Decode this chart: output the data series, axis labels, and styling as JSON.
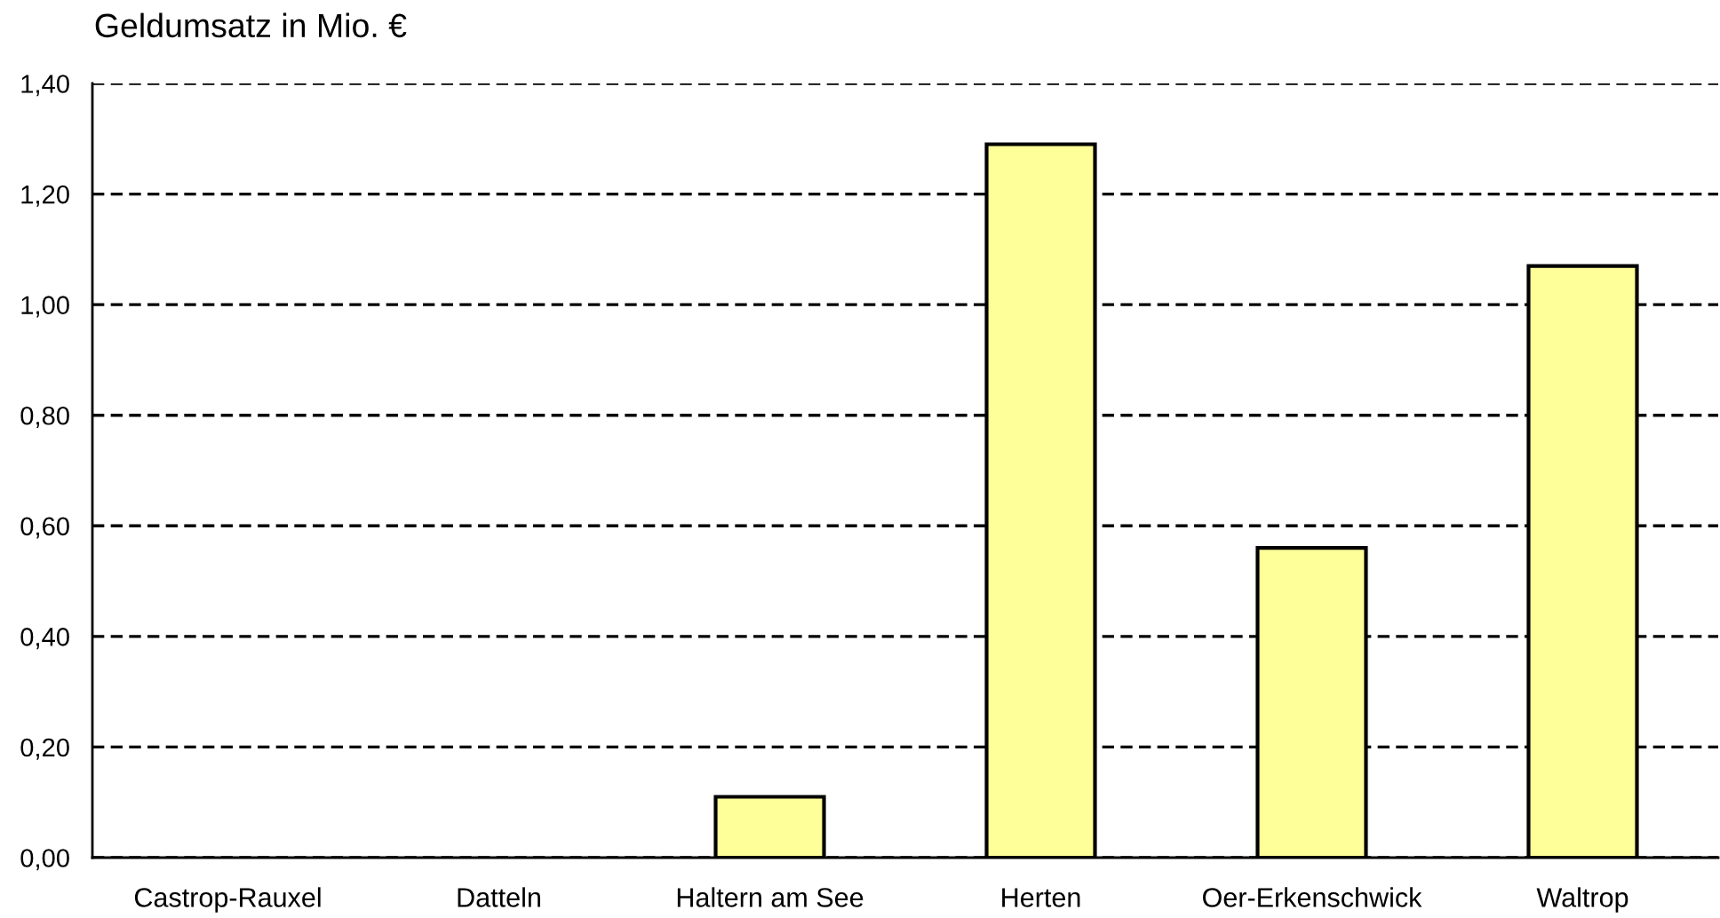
{
  "chart_data": {
    "type": "bar",
    "ylabel": "Geldumsatz in Mio. €",
    "categories": [
      "Castrop-Rauxel",
      "Datteln",
      "Haltern am See",
      "Herten",
      "Oer-Erkenschwick",
      "Waltrop"
    ],
    "values": [
      null,
      null,
      0.11,
      1.29,
      0.56,
      1.07
    ],
    "color": "#ffff99",
    "ylim": [
      0,
      1.4
    ],
    "yticks": [
      {
        "value": 0,
        "label": "0,00"
      },
      {
        "value": 0.2,
        "label": "0,20"
      },
      {
        "value": 0.4,
        "label": "0,40"
      },
      {
        "value": 0.6,
        "label": "0,60"
      },
      {
        "value": 0.8,
        "label": "0,80"
      },
      {
        "value": 1.0,
        "label": "1,00"
      },
      {
        "value": 1.2,
        "label": "1,20"
      },
      {
        "value": 1.4,
        "label": "1,40"
      }
    ],
    "grid": "y"
  }
}
